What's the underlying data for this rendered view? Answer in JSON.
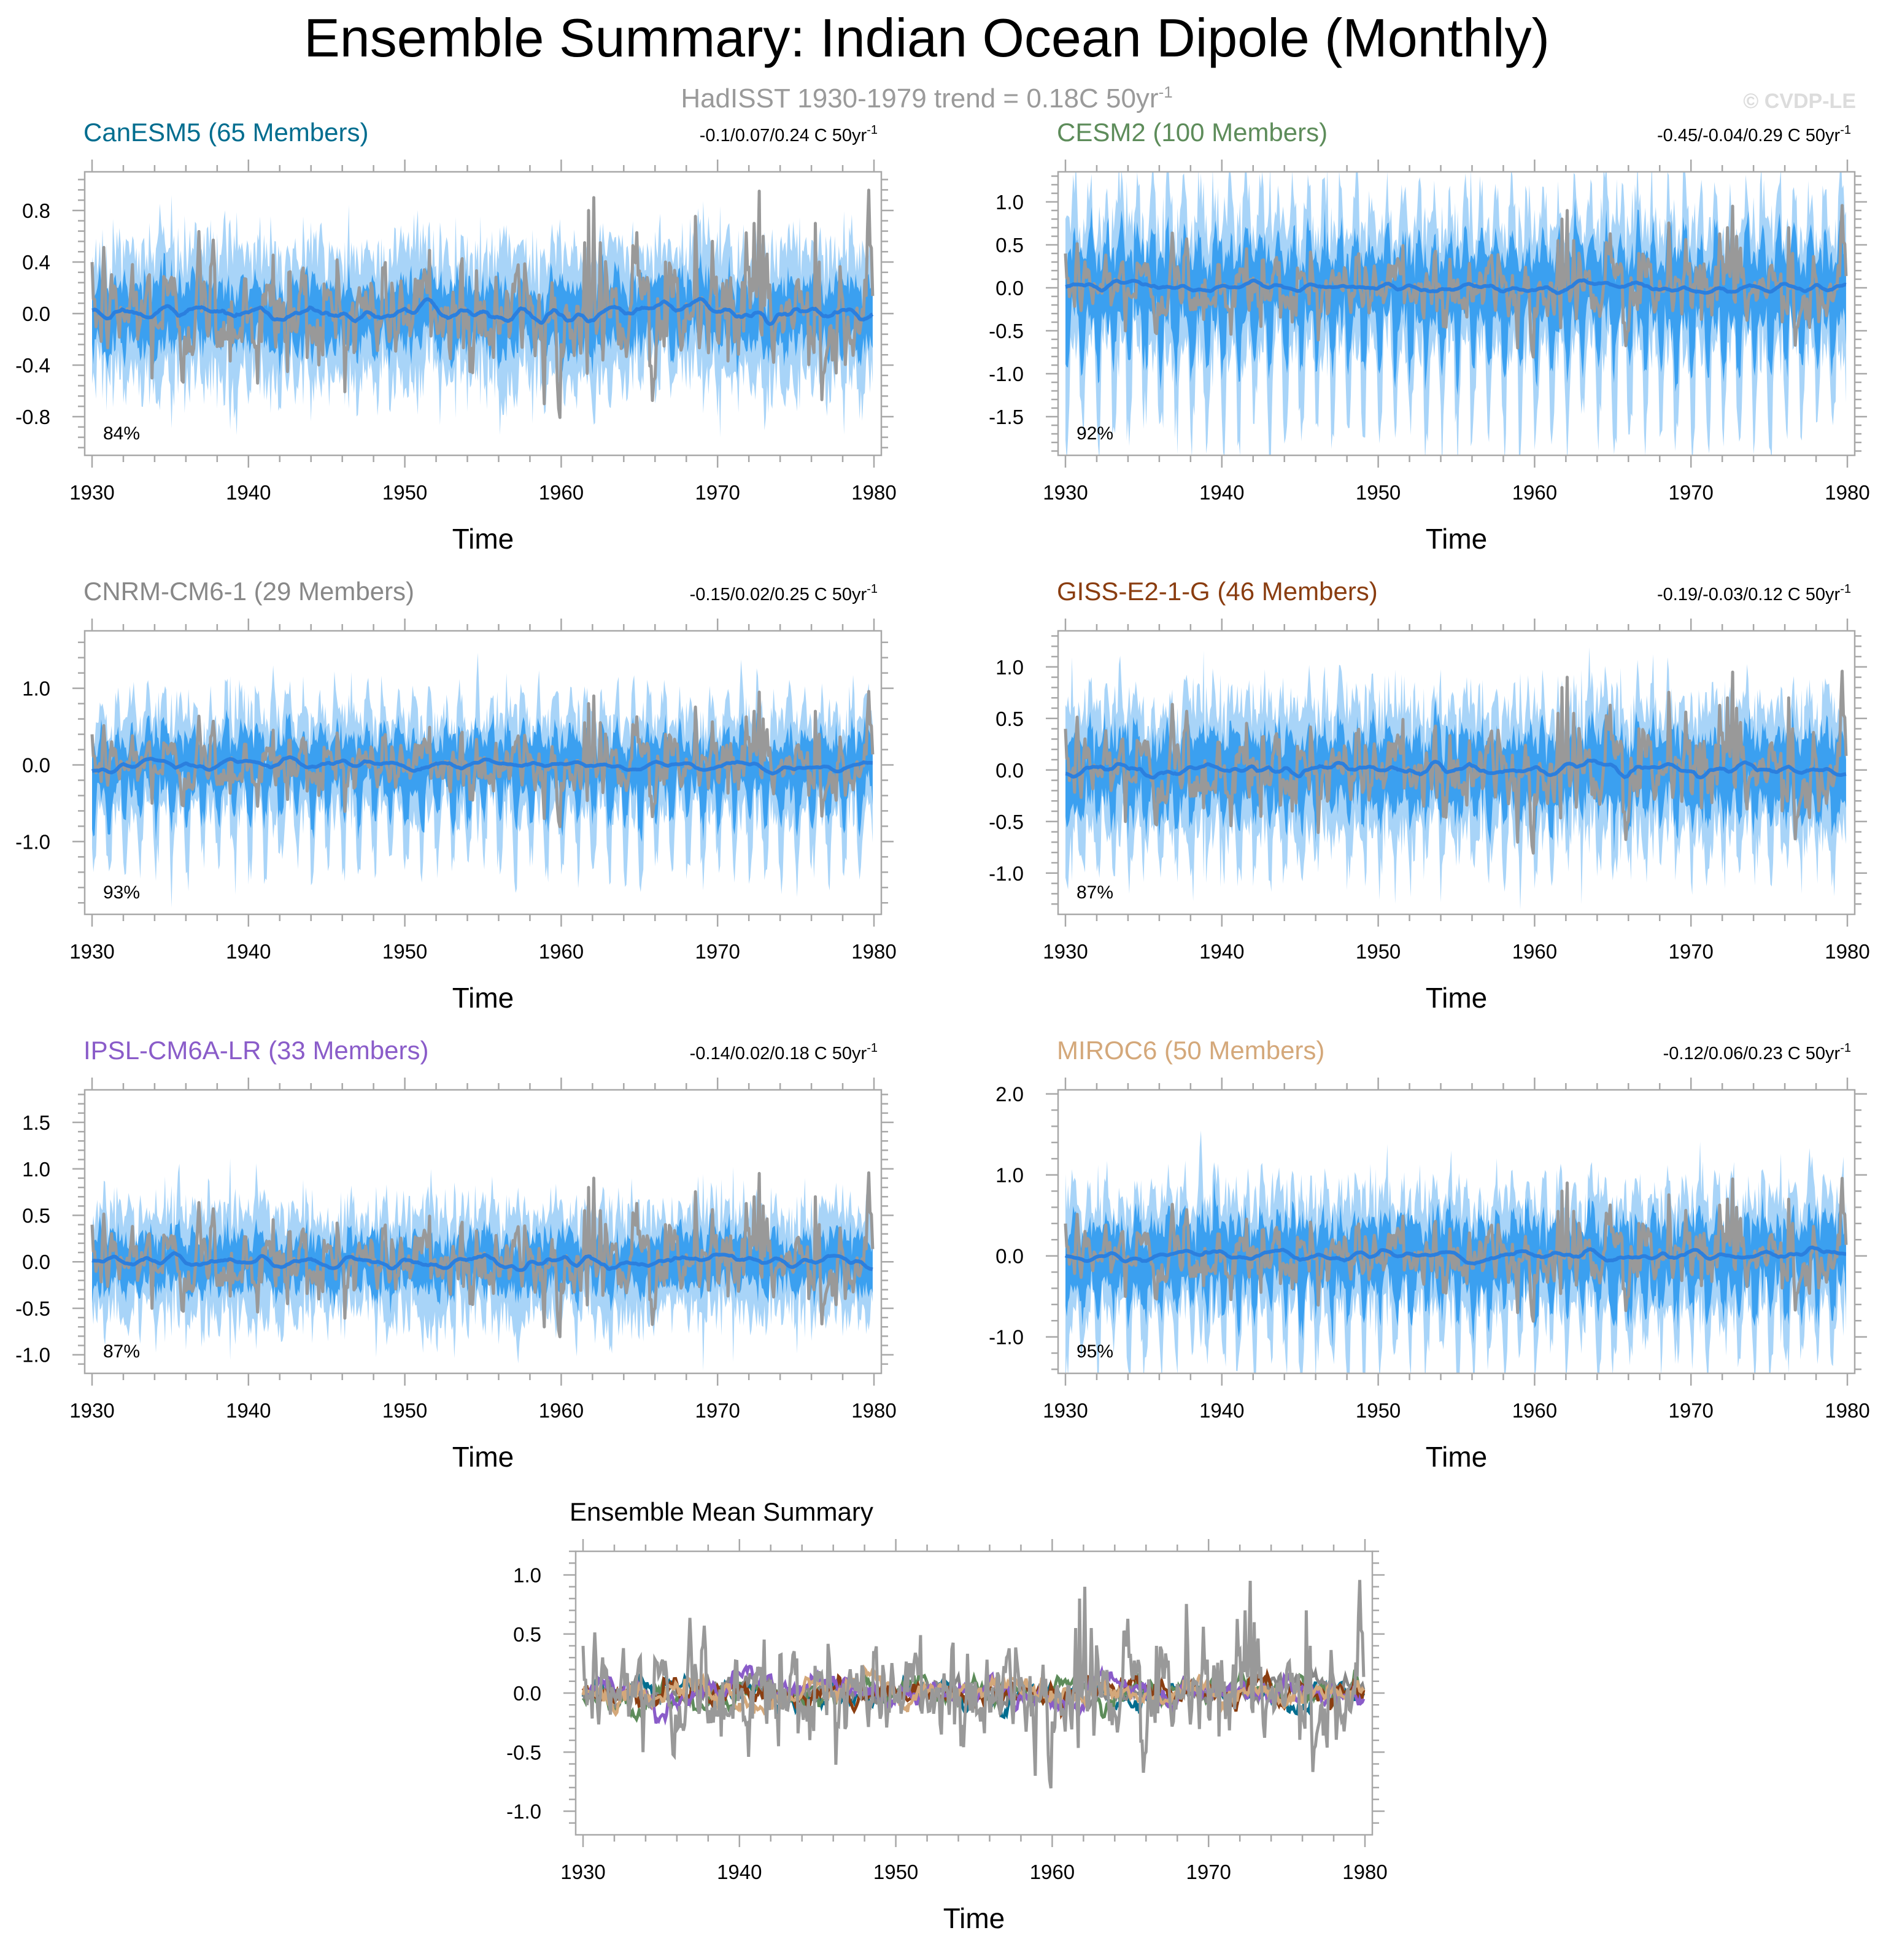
{
  "figure": {
    "title": "Ensemble Summary: Indian Ocean Dipole (Monthly)",
    "subtitle": "HadISST 1930-1979 trend = 0.18C 50yr",
    "subtitle_superscript": "-1",
    "watermark": "© CVDP-LE"
  },
  "colors": {
    "observations": "#999999",
    "envelope_outer": "#a8d4f8",
    "envelope_inner": "#3ba0f0",
    "ensemble_mean": "#2b7fde"
  },
  "chart_data": [
    {
      "type": "area",
      "id": "canesm5",
      "title": "CanESM5 (65 Members)",
      "title_color": "#006d8f",
      "trend_text": "-0.1/0.07/0.24 C 50yr",
      "trend_superscript": "-1",
      "percent_label": "84%",
      "xlabel": "Time",
      "xlim": [
        1930,
        1980
      ],
      "xticks": [
        1930,
        1940,
        1950,
        1960,
        1970,
        1980
      ],
      "ylim": [
        -1.1,
        1.1
      ],
      "yticks": [
        0.8,
        0.4,
        0.0,
        -0.4,
        -0.8
      ],
      "ytick_labels": [
        "0.8",
        "0.4",
        "0.0",
        "-0.4",
        "-0.8"
      ],
      "seasonal_amplitude": 0.15,
      "envelope_inner_halfwidth": 0.22,
      "envelope_outer_halfwidth": 0.45,
      "obs_scale": 1.0,
      "series": [
        {
          "role": "observations",
          "notes": "HadISST (grey)"
        },
        {
          "role": "ensemble_range",
          "notes": "light/dark blue shading"
        },
        {
          "role": "ensemble_mean",
          "notes": "blue line"
        }
      ]
    },
    {
      "type": "area",
      "id": "cesm2",
      "title": "CESM2 (100 Members)",
      "title_color": "#5d8c5a",
      "trend_text": "-0.45/-0.04/0.29 C 50yr",
      "trend_superscript": "-1",
      "percent_label": "92%",
      "xlabel": "Time",
      "xlim": [
        1930,
        1980
      ],
      "xticks": [
        1930,
        1940,
        1950,
        1960,
        1970,
        1980
      ],
      "ylim": [
        -1.95,
        1.35
      ],
      "yticks": [
        1.0,
        0.5,
        0.0,
        -0.5,
        -1.0,
        -1.5
      ],
      "ytick_labels": [
        "1.0",
        "0.5",
        "0.0",
        "-0.5",
        "-1.0",
        "-1.5"
      ],
      "seasonal_amplitude": 0.9,
      "envelope_inner_halfwidth": 0.35,
      "envelope_outer_halfwidth": 0.65,
      "obs_scale": 1.0
    },
    {
      "type": "area",
      "id": "cnrm",
      "title": "CNRM-CM6-1 (29 Members)",
      "title_color": "#888888",
      "trend_text": "-0.15/0.02/0.25 C 50yr",
      "trend_superscript": "-1",
      "percent_label": "93%",
      "xlabel": "Time",
      "xlim": [
        1930,
        1980
      ],
      "xticks": [
        1930,
        1940,
        1950,
        1960,
        1970,
        1980
      ],
      "ylim": [
        -1.95,
        1.75
      ],
      "yticks": [
        1.0,
        0.0,
        -1.0
      ],
      "ytick_labels": [
        "1.0",
        "0.0",
        "-1.0"
      ],
      "seasonal_amplitude": 0.7,
      "envelope_inner_halfwidth": 0.3,
      "envelope_outer_halfwidth": 0.55,
      "obs_scale": 1.0
    },
    {
      "type": "area",
      "id": "giss",
      "title": "GISS-E2-1-G (46 Members)",
      "title_color": "#8a3d10",
      "trend_text": "-0.19/-0.03/0.12 C 50yr",
      "trend_superscript": "-1",
      "percent_label": "87%",
      "xlabel": "Time",
      "xlim": [
        1930,
        1980
      ],
      "xticks": [
        1930,
        1940,
        1950,
        1960,
        1970,
        1980
      ],
      "ylim": [
        -1.4,
        1.35
      ],
      "yticks": [
        1.0,
        0.5,
        0.0,
        -0.5,
        -1.0
      ],
      "ytick_labels": [
        "1.0",
        "0.5",
        "0.0",
        "-0.5",
        "-1.0"
      ],
      "seasonal_amplitude": 0.35,
      "envelope_inner_halfwidth": 0.3,
      "envelope_outer_halfwidth": 0.55,
      "obs_scale": 1.0
    },
    {
      "type": "area",
      "id": "ipsl",
      "title": "IPSL-CM6A-LR (33 Members)",
      "title_color": "#8a5cc9",
      "trend_text": "-0.14/0.02/0.18 C 50yr",
      "trend_superscript": "-1",
      "percent_label": "87%",
      "xlabel": "Time",
      "xlim": [
        1930,
        1980
      ],
      "xticks": [
        1930,
        1940,
        1950,
        1960,
        1970,
        1980
      ],
      "ylim": [
        -1.2,
        1.85
      ],
      "yticks": [
        1.5,
        1.0,
        0.5,
        0.0,
        -0.5,
        -1.0
      ],
      "ytick_labels": [
        "1.5",
        "1.0",
        "0.5",
        "0.0",
        "-0.5",
        "-1.0"
      ],
      "seasonal_amplitude": 0.15,
      "envelope_inner_halfwidth": 0.25,
      "envelope_outer_halfwidth": 0.5,
      "obs_scale": 1.0
    },
    {
      "type": "area",
      "id": "miroc6",
      "title": "MIROC6 (50 Members)",
      "title_color": "#d4a87a",
      "trend_text": "-0.12/0.06/0.23 C 50yr",
      "trend_superscript": "-1",
      "percent_label": "95%",
      "xlabel": "Time",
      "xlim": [
        1930,
        1980
      ],
      "xticks": [
        1930,
        1940,
        1950,
        1960,
        1970,
        1980
      ],
      "ylim": [
        -1.45,
        2.05
      ],
      "yticks": [
        2.0,
        1.0,
        0.0,
        -1.0
      ],
      "ytick_labels": [
        "2.0",
        "1.0",
        "0.0",
        "-1.0"
      ],
      "seasonal_amplitude": 0.6,
      "envelope_inner_halfwidth": 0.35,
      "envelope_outer_halfwidth": 0.6,
      "obs_scale": 1.0
    },
    {
      "type": "line",
      "id": "ensemble_mean_summary",
      "title": "Ensemble Mean Summary",
      "title_color": "#000000",
      "xlabel": "Time",
      "xlim": [
        1930,
        1980
      ],
      "xticks": [
        1930,
        1940,
        1950,
        1960,
        1970,
        1980
      ],
      "ylim": [
        -1.2,
        1.2
      ],
      "yticks": [
        1.0,
        0.5,
        0.0,
        -0.5,
        -1.0
      ],
      "ytick_labels": [
        "1.0",
        "0.5",
        "0.0",
        "-0.5",
        "-1.0"
      ],
      "series_colors": [
        "#006d8f",
        "#5d8c5a",
        "#888888",
        "#8a3d10",
        "#8a5cc9",
        "#d4a87a"
      ]
    }
  ]
}
